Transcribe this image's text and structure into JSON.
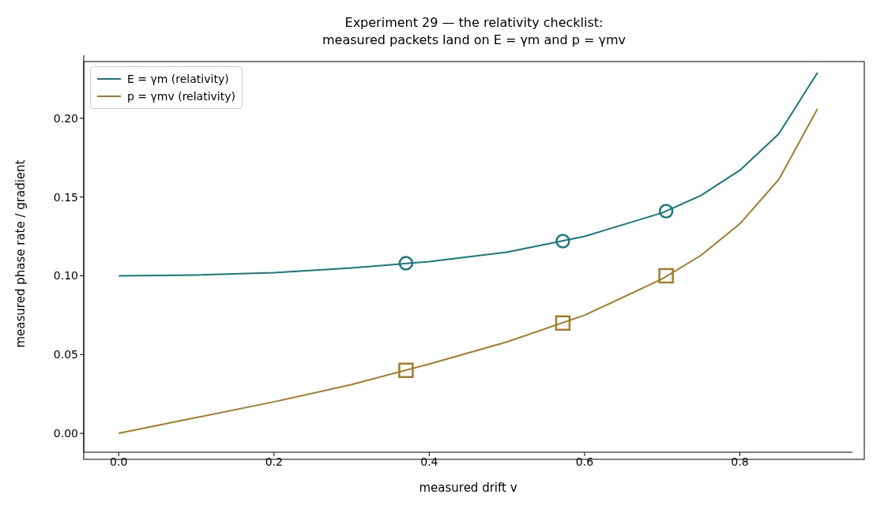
{
  "chart_data": {
    "type": "line",
    "title": "Experiment 29 — the relativity checklist:\nmeasured packets land on E = γm and p = γmv",
    "xlabel": "measured drift v",
    "ylabel": "measured phase rate / gradient",
    "xlim": [
      -0.045,
      0.945
    ],
    "xticks": [
      {
        "value": 0,
        "label": "0.0"
      },
      {
        "value": 0.2,
        "label": "0.2"
      },
      {
        "value": 0.4,
        "label": "0.4"
      },
      {
        "value": 0.6,
        "label": "0.6"
      },
      {
        "value": 0.8,
        "label": "0.8"
      }
    ],
    "ylim": [
      -0.012,
      0.24
    ],
    "yticks": [
      {
        "value": 0,
        "label": "0.00"
      },
      {
        "value": 0.05,
        "label": "0.05"
      },
      {
        "value": 0.1,
        "label": "0.10"
      },
      {
        "value": 0.15,
        "label": "0.15"
      },
      {
        "value": 0.2,
        "label": "0.20"
      }
    ],
    "grid": false,
    "legend": "top left",
    "series": [
      {
        "name": "E = γm (relativity)",
        "color": "#137a7f",
        "marker": "none",
        "x": [
          0,
          0.1,
          0.2,
          0.3,
          0.4,
          0.5,
          0.6,
          0.7,
          0.75,
          0.8,
          0.85,
          0.9
        ],
        "values": [
          0.1,
          0.1005,
          0.102,
          0.105,
          0.109,
          0.115,
          0.125,
          0.14,
          0.151,
          0.167,
          0.19,
          0.229
        ]
      },
      {
        "name": "p = γmv (relativity)",
        "color": "#a67c27",
        "marker": "none",
        "x": [
          0,
          0.1,
          0.2,
          0.3,
          0.4,
          0.5,
          0.6,
          0.7,
          0.75,
          0.8,
          0.85,
          0.9
        ],
        "values": [
          0,
          0.01,
          0.02,
          0.031,
          0.044,
          0.058,
          0.075,
          0.098,
          0.113,
          0.133,
          0.161,
          0.206
        ]
      },
      {
        "type": "scatter",
        "color": "#137a7f",
        "marker": "circle",
        "x": [
          0.37,
          0.572,
          0.705
        ],
        "values": [
          0.108,
          0.122,
          0.141
        ]
      },
      {
        "type": "scatter",
        "color": "#a67c27",
        "marker": "square",
        "x": [
          0.37,
          0.572,
          0.705
        ],
        "values": [
          0.04,
          0.07,
          0.1
        ]
      }
    ]
  }
}
